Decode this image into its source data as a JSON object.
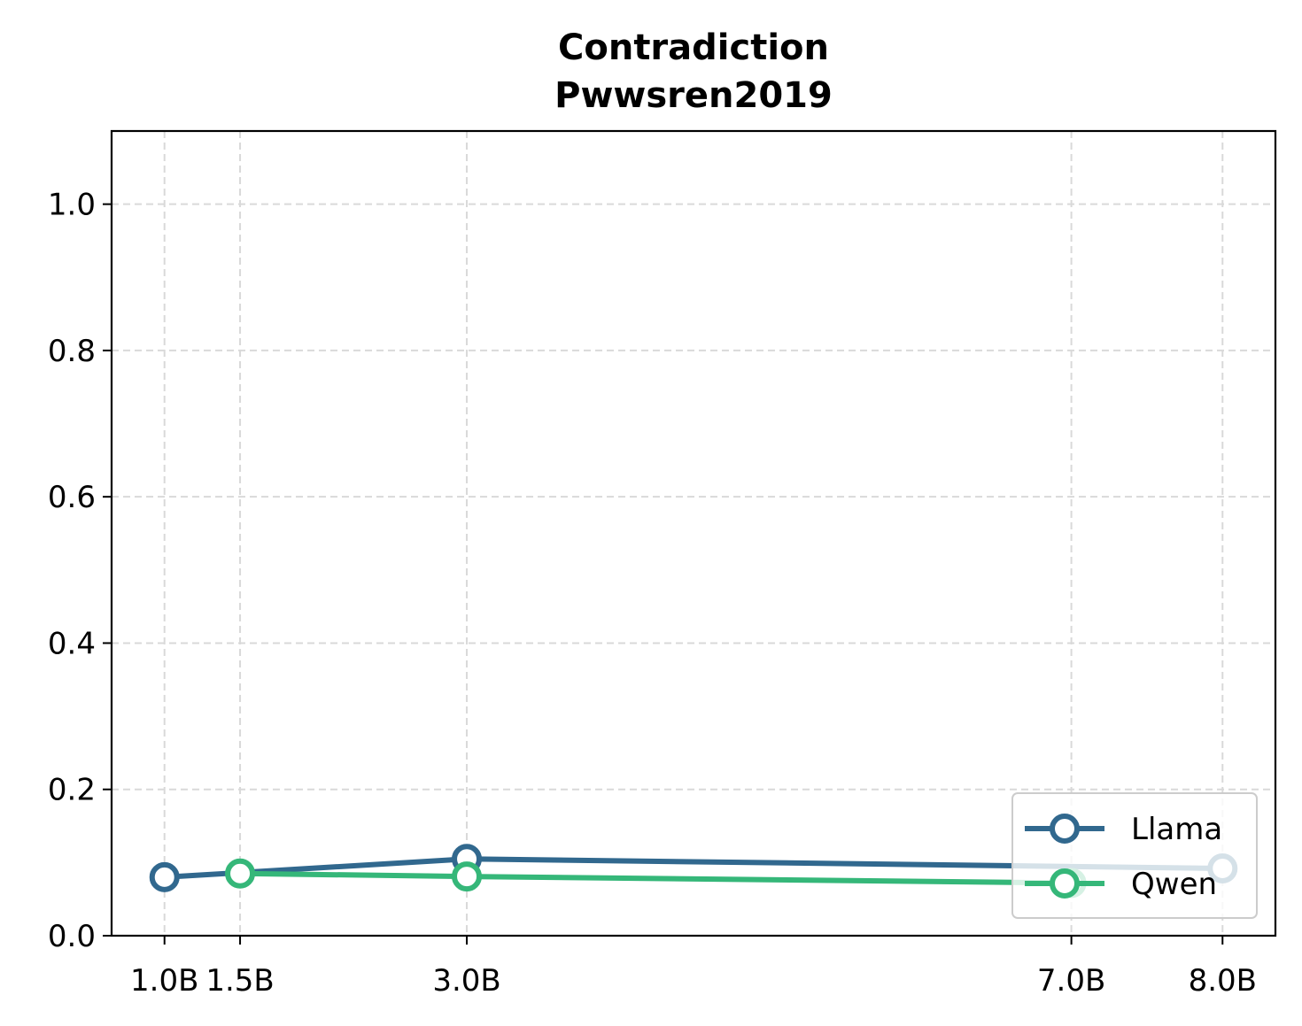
{
  "chart_data": {
    "type": "line",
    "title": "Contradiction\nPwwsren2019",
    "title_lines": [
      "Contradiction",
      "Pwwsren2019"
    ],
    "xlabel": "",
    "ylabel": "",
    "x_ticks": [
      1.0,
      1.5,
      3.0,
      7.0,
      8.0
    ],
    "x_tick_labels": [
      "1.0B",
      "1.5B",
      "3.0B",
      "7.0B",
      "8.0B"
    ],
    "xlim": [
      0.65,
      8.35
    ],
    "y_ticks": [
      0.0,
      0.2,
      0.4,
      0.6,
      0.8,
      1.0
    ],
    "y_tick_labels": [
      "0.0",
      "0.2",
      "0.4",
      "0.6",
      "0.8",
      "1.0"
    ],
    "ylim": [
      0.0,
      1.1
    ],
    "grid": true,
    "legend_position": "bottom-right",
    "series": [
      {
        "name": "Llama",
        "color": "#31688e",
        "x": [
          1.0,
          3.0,
          8.0
        ],
        "y": [
          0.08,
          0.105,
          0.092
        ],
        "marker": "open-circle"
      },
      {
        "name": "Qwen",
        "color": "#35b779",
        "x": [
          1.5,
          3.0,
          7.0
        ],
        "y": [
          0.085,
          0.081,
          0.072
        ],
        "marker": "open-circle"
      }
    ]
  }
}
